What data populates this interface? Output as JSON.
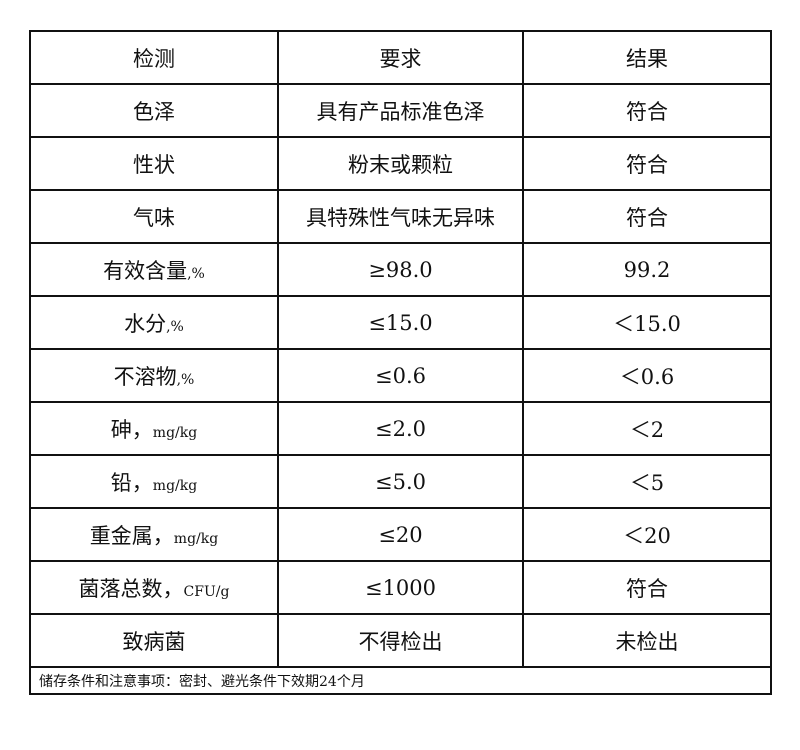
{
  "header": {
    "test": "检测",
    "requirement": "要求",
    "result": "结果"
  },
  "rows": [
    {
      "test": "色泽",
      "unit": "",
      "requirement": "具有产品标准色泽",
      "result": "符合"
    },
    {
      "test": "性状",
      "unit": "",
      "requirement": "粉末或颗粒",
      "result": "符合"
    },
    {
      "test": "气味",
      "unit": "",
      "requirement": "具特殊性气味无异味",
      "result": "符合"
    },
    {
      "test": "有效含量",
      "unit": ",%",
      "requirement": "≥98.0",
      "result": "99.2"
    },
    {
      "test": "水分",
      "unit": ",%",
      "requirement": "≤15.0",
      "result": "＜15.0"
    },
    {
      "test": "不溶物",
      "unit": ",%",
      "requirement": "≤0.6",
      "result": "＜0.6"
    },
    {
      "test": "砷，",
      "unit": "mg/kg",
      "requirement": "≤2.0",
      "result": "＜2"
    },
    {
      "test": "铅，",
      "unit": "mg/kg",
      "requirement": "≤5.0",
      "result": "＜5"
    },
    {
      "test": "重金属，",
      "unit": "mg/kg",
      "requirement": "≤20",
      "result": "＜20"
    },
    {
      "test": "菌落总数，",
      "unit": "CFU/g",
      "requirement": "≤1000",
      "result": "符合"
    },
    {
      "test": "致病菌",
      "unit": "",
      "requirement": "不得检出",
      "result": "未检出"
    }
  ],
  "footer": "储存条件和注意事项：密封、避光条件下效期24个月"
}
